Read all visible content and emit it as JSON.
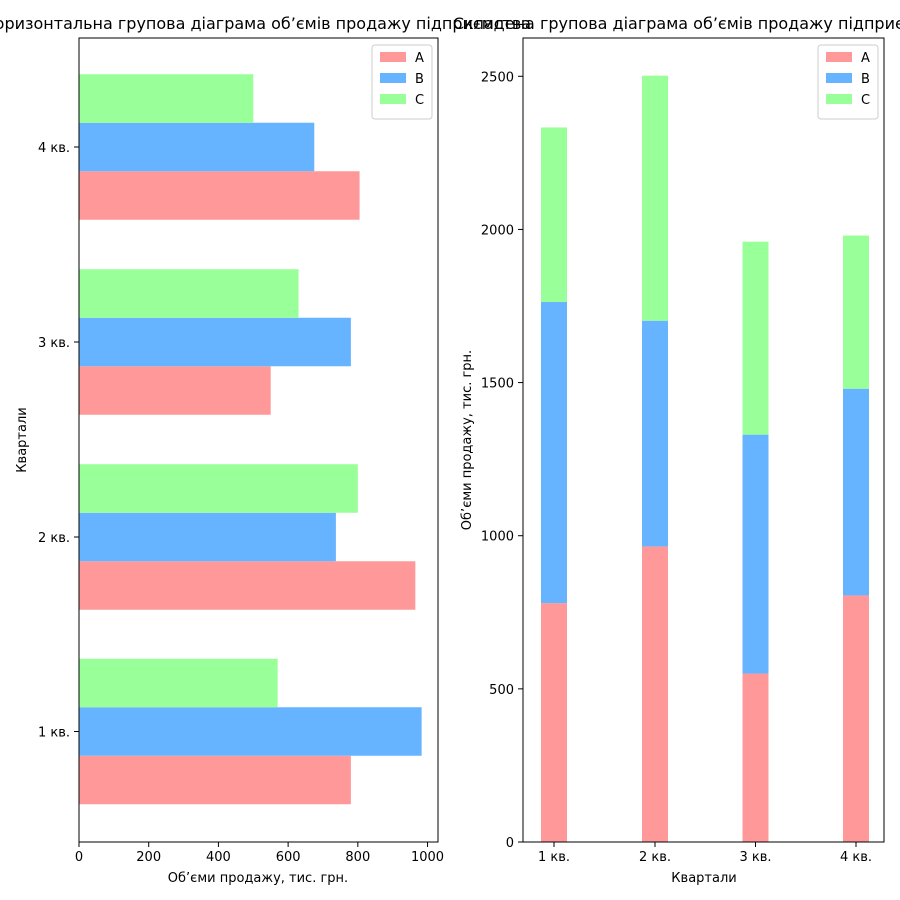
{
  "chart_data": [
    {
      "type": "bar",
      "orientation": "horizontal",
      "title": "Горизонтальна групова діаграма об’ємів продажу підприємства",
      "xlabel": "Об’єми продажу, тис. грн.",
      "ylabel": "Квартали",
      "categories": [
        "1 кв.",
        "2 кв.",
        "3 кв.",
        "4 кв."
      ],
      "series": [
        {
          "name": "A",
          "values": [
            780,
            965,
            550,
            805
          ],
          "color": "#ff9999"
        },
        {
          "name": "B",
          "values": [
            983,
            737,
            780,
            675
          ],
          "color": "#66b3ff"
        },
        {
          "name": "C",
          "values": [
            570,
            800,
            630,
            500
          ],
          "color": "#99ff99"
        }
      ],
      "xlim": [
        0,
        1030
      ],
      "xticks": [
        "0",
        "200",
        "400",
        "600",
        "800",
        "1000"
      ],
      "grid": false,
      "legend": "top-right"
    },
    {
      "type": "bar",
      "orientation": "vertical-stacked",
      "title": "Складена групова діаграма об’ємів продажу підприємства",
      "xlabel": "Квартали",
      "ylabel": "Об’єми продажу, тис. грн.",
      "categories": [
        "1 кв.",
        "2 кв.",
        "3 кв.",
        "4 кв."
      ],
      "series": [
        {
          "name": "A",
          "values": [
            780,
            965,
            550,
            805
          ],
          "color": "#ff9999"
        },
        {
          "name": "B",
          "values": [
            983,
            737,
            780,
            675
          ],
          "color": "#66b3ff"
        },
        {
          "name": "C",
          "values": [
            570,
            800,
            630,
            500
          ],
          "color": "#99ff99"
        }
      ],
      "ylim": [
        0,
        2625
      ],
      "yticks": [
        "0",
        "500",
        "1000",
        "1500",
        "2000",
        "2500"
      ],
      "grid": false,
      "legend": "top-right"
    }
  ]
}
